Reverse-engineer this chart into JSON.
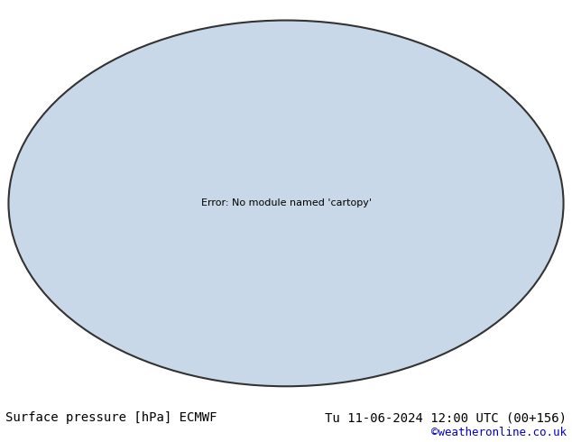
{
  "title_left": "Surface pressure [hPa] ECMWF",
  "title_right": "Tu 11-06-2024 12:00 UTC (00+156)",
  "credit": "©weatheronline.co.uk",
  "credit_color": "#0000cc",
  "background_color": "#ffffff",
  "footer_color": "#000000",
  "footer_fontsize": 10,
  "land_color": "#aaddaa",
  "ocean_color": "#c8d8e8",
  "globe_bg": "#e8e8e8",
  "contour_color_low": "#0000ff",
  "contour_color_high": "#ff0000",
  "contour_color_mid": "#000000",
  "contour_mid_level": 1013,
  "label_fontsize": 5,
  "figwidth": 6.34,
  "figheight": 4.9,
  "dpi": 100
}
